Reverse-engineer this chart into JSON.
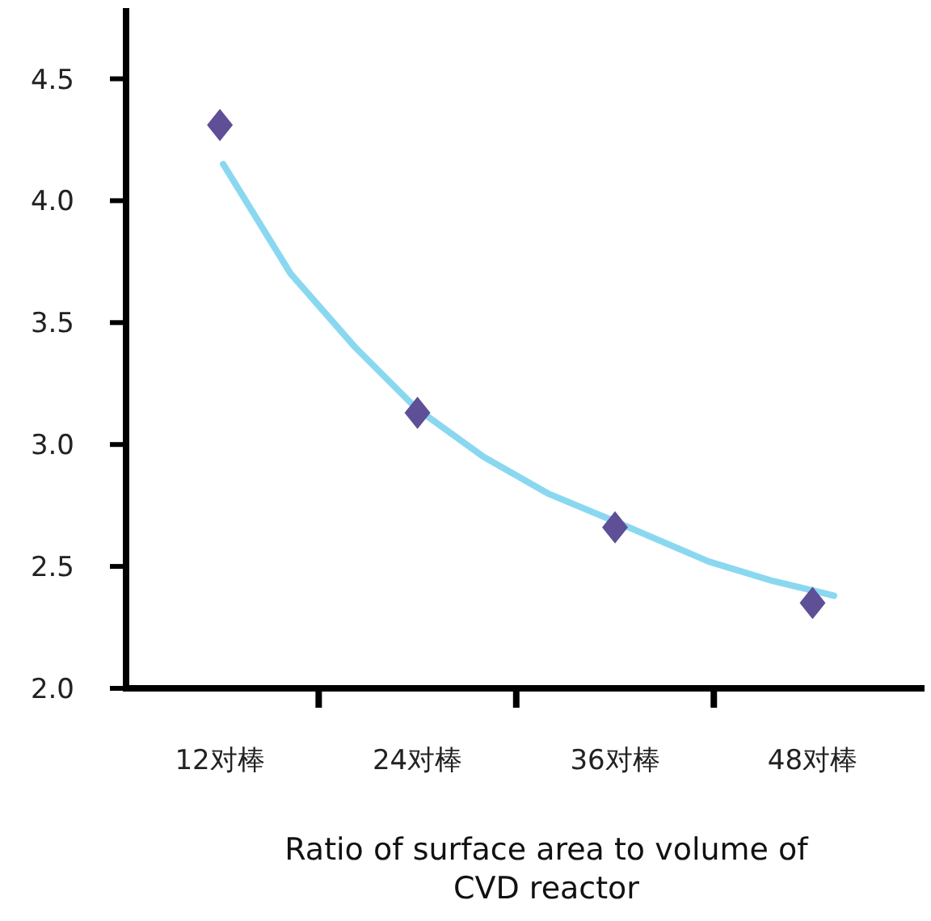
{
  "chart_data": {
    "type": "scatter",
    "xlabel": "Ratio of surface area to volume of CVD reactor",
    "x": [
      12,
      24,
      36,
      48
    ],
    "xlim": [
      6.3,
      54.8
    ],
    "xticks": [
      {
        "value": 12,
        "label": "12对棒"
      },
      {
        "value": 18,
        "label": null
      },
      {
        "value": 24,
        "label": "24对棒"
      },
      {
        "value": 30,
        "label": null
      },
      {
        "value": 36,
        "label": "36对棒"
      },
      {
        "value": 42,
        "label": null
      },
      {
        "value": 48,
        "label": "48对棒"
      }
    ],
    "ylim": [
      2.0,
      4.79
    ],
    "yticks": [
      {
        "value": 2.0,
        "label": "2.0"
      },
      {
        "value": 2.5,
        "label": "2.5"
      },
      {
        "value": 3.0,
        "label": "3.0"
      },
      {
        "value": 3.5,
        "label": "3.5"
      },
      {
        "value": 4.0,
        "label": "4.0"
      },
      {
        "value": 4.5,
        "label": "4.5"
      }
    ],
    "grid": false,
    "series": [
      {
        "color": "#5e4f96",
        "marker": "diamond",
        "values": [
          4.31,
          3.13,
          2.66,
          2.35
        ]
      },
      {
        "type": "line",
        "color": "#8ad8f0",
        "marker": "none",
        "line_style": "solid",
        "x": [
          12.2,
          16.3,
          20.2,
          23.9,
          28.0,
          31.9,
          35.8,
          41.7,
          45.6,
          49.3
        ],
        "values": [
          4.15,
          3.7,
          3.4,
          3.15,
          2.95,
          2.8,
          2.69,
          2.52,
          2.44,
          2.38
        ]
      }
    ]
  }
}
